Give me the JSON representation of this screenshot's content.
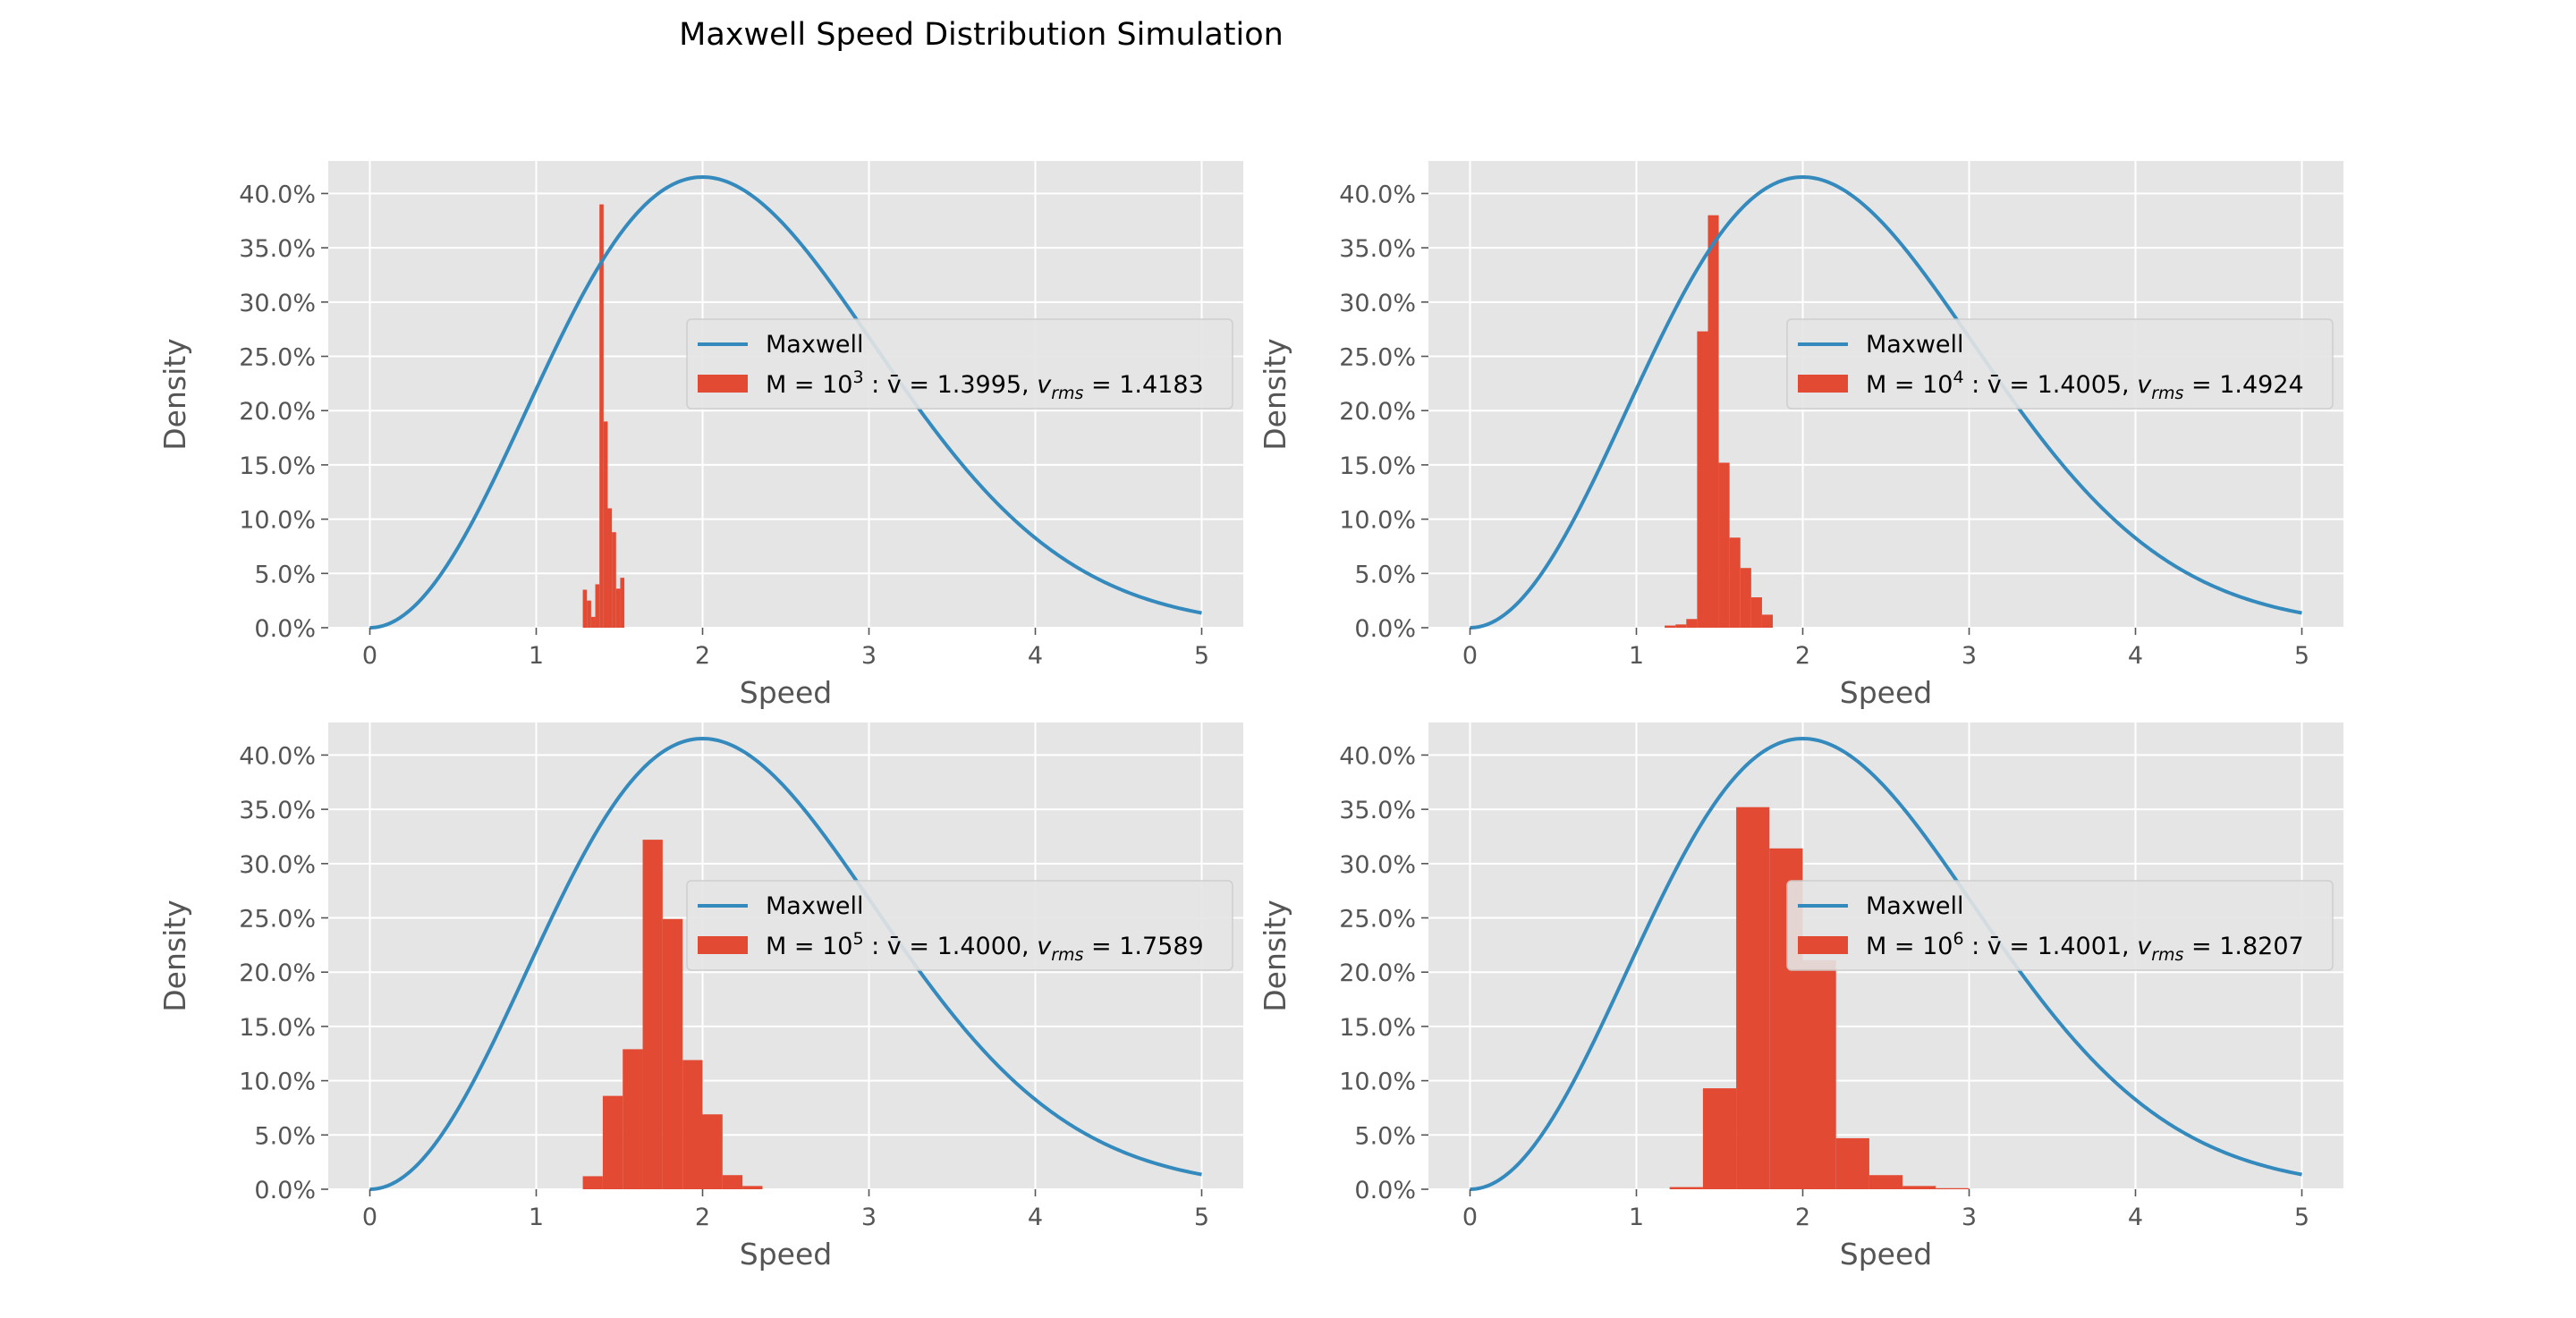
{
  "figure": {
    "title": "Maxwell Speed Distribution Simulation"
  },
  "colors": {
    "axes_background": "#e5e5e5",
    "grid": "#ffffff",
    "curve": "#348abd",
    "histogram": "#e24a33",
    "tick_text": "#555555",
    "title_text": "#000000",
    "legend_background": "#e5e5e5",
    "legend_border": "#cccccc"
  },
  "chart_data": [
    {
      "type": "bar",
      "panel": "top-left",
      "xlabel": "Speed",
      "ylabel": "Density",
      "xlim": [
        -0.25,
        5.25
      ],
      "ylim": [
        0,
        0.43
      ],
      "xticks": [
        0,
        1,
        2,
        3,
        4,
        5
      ],
      "xtick_labels": [
        "0",
        "1",
        "2",
        "3",
        "4",
        "5"
      ],
      "yticks": [
        0,
        0.05,
        0.1,
        0.15,
        0.2,
        0.25,
        0.3,
        0.35,
        0.4
      ],
      "ytick_labels": [
        "0.0%",
        "5.0%",
        "10.0%",
        "15.0%",
        "20.0%",
        "25.0%",
        "30.0%",
        "35.0%",
        "40.0%"
      ],
      "grid": true,
      "legend_position": "center-right",
      "maxwell_curve": {
        "name": "Maxwell",
        "formula": "sqrt(2/pi)*(v^2/a^3)*exp(-v^2/(2a^2))",
        "a": 1.414,
        "x_range": [
          0,
          5
        ]
      },
      "histogram": {
        "name_prefix": "M = 10",
        "name_exponent": "3",
        "name_vbar": " : v̄ = 1.3995, ",
        "name_vrms_label": "v",
        "name_vrms_sub": "rms",
        "name_vrms_value": " = 1.4183",
        "bin_edges": [
          1.28,
          1.305,
          1.33,
          1.355,
          1.38,
          1.405,
          1.43,
          1.455,
          1.48,
          1.505,
          1.53
        ],
        "values": [
          0.035,
          0.025,
          0.01,
          0.04,
          0.39,
          0.19,
          0.11,
          0.088,
          0.036,
          0.046
        ]
      }
    },
    {
      "type": "bar",
      "panel": "top-right",
      "xlabel": "Speed",
      "ylabel": "Density",
      "xlim": [
        -0.25,
        5.25
      ],
      "ylim": [
        0,
        0.43
      ],
      "xticks": [
        0,
        1,
        2,
        3,
        4,
        5
      ],
      "xtick_labels": [
        "0",
        "1",
        "2",
        "3",
        "4",
        "5"
      ],
      "yticks": [
        0,
        0.05,
        0.1,
        0.15,
        0.2,
        0.25,
        0.3,
        0.35,
        0.4
      ],
      "ytick_labels": [
        "0.0%",
        "5.0%",
        "10.0%",
        "15.0%",
        "20.0%",
        "25.0%",
        "30.0%",
        "35.0%",
        "40.0%"
      ],
      "grid": true,
      "legend_position": "center-right",
      "maxwell_curve": {
        "name": "Maxwell",
        "formula": "sqrt(2/pi)*(v^2/a^3)*exp(-v^2/(2a^2))",
        "a": 1.414,
        "x_range": [
          0,
          5
        ]
      },
      "histogram": {
        "name_prefix": "M = 10",
        "name_exponent": "4",
        "name_vbar": " : v̄ = 1.4005, ",
        "name_vrms_label": "v",
        "name_vrms_sub": "rms",
        "name_vrms_value": " = 1.4924",
        "bin_edges": [
          1.17,
          1.235,
          1.3,
          1.365,
          1.43,
          1.495,
          1.56,
          1.625,
          1.69,
          1.755,
          1.82
        ],
        "values": [
          0.002,
          0.003,
          0.008,
          0.273,
          0.38,
          0.152,
          0.083,
          0.055,
          0.028,
          0.012
        ]
      }
    },
    {
      "type": "bar",
      "panel": "bottom-left",
      "xlabel": "Speed",
      "ylabel": "Density",
      "xlim": [
        -0.25,
        5.25
      ],
      "ylim": [
        0,
        0.43
      ],
      "xticks": [
        0,
        1,
        2,
        3,
        4,
        5
      ],
      "xtick_labels": [
        "0",
        "1",
        "2",
        "3",
        "4",
        "5"
      ],
      "yticks": [
        0,
        0.05,
        0.1,
        0.15,
        0.2,
        0.25,
        0.3,
        0.35,
        0.4
      ],
      "ytick_labels": [
        "0.0%",
        "5.0%",
        "10.0%",
        "15.0%",
        "20.0%",
        "25.0%",
        "30.0%",
        "35.0%",
        "40.0%"
      ],
      "grid": true,
      "legend_position": "center-right",
      "maxwell_curve": {
        "name": "Maxwell",
        "formula": "sqrt(2/pi)*(v^2/a^3)*exp(-v^2/(2a^2))",
        "a": 1.414,
        "x_range": [
          0,
          5
        ]
      },
      "histogram": {
        "name_prefix": "M = 10",
        "name_exponent": "5",
        "name_vbar": " : v̄ = 1.4000, ",
        "name_vrms_label": "v",
        "name_vrms_sub": "rms",
        "name_vrms_value": " = 1.7589",
        "bin_edges": [
          1.28,
          1.4,
          1.52,
          1.64,
          1.76,
          1.88,
          2.0,
          2.12,
          2.24,
          2.36,
          2.48
        ],
        "values": [
          0.012,
          0.086,
          0.129,
          0.322,
          0.249,
          0.119,
          0.069,
          0.013,
          0.003,
          0.0
        ]
      }
    },
    {
      "type": "bar",
      "panel": "bottom-right",
      "xlabel": "Speed",
      "ylabel": "Density",
      "xlim": [
        -0.25,
        5.25
      ],
      "ylim": [
        0,
        0.43
      ],
      "xticks": [
        0,
        1,
        2,
        3,
        4,
        5
      ],
      "xtick_labels": [
        "0",
        "1",
        "2",
        "3",
        "4",
        "5"
      ],
      "yticks": [
        0,
        0.05,
        0.1,
        0.15,
        0.2,
        0.25,
        0.3,
        0.35,
        0.4
      ],
      "ytick_labels": [
        "0.0%",
        "5.0%",
        "10.0%",
        "15.0%",
        "20.0%",
        "25.0%",
        "30.0%",
        "35.0%",
        "40.0%"
      ],
      "grid": true,
      "legend_position": "center-right",
      "maxwell_curve": {
        "name": "Maxwell",
        "formula": "sqrt(2/pi)*(v^2/a^3)*exp(-v^2/(2a^2))",
        "a": 1.414,
        "x_range": [
          0,
          5
        ]
      },
      "histogram": {
        "name_prefix": "M = 10",
        "name_exponent": "6",
        "name_vbar": " : v̄ = 1.4001, ",
        "name_vrms_label": "v",
        "name_vrms_sub": "rms",
        "name_vrms_value": " = 1.8207",
        "bin_edges": [
          1.2,
          1.4,
          1.6,
          1.8,
          2.0,
          2.2,
          2.4,
          2.6,
          2.8,
          3.0
        ],
        "values": [
          0.002,
          0.093,
          0.352,
          0.314,
          0.211,
          0.047,
          0.013,
          0.003,
          0.001
        ]
      }
    }
  ]
}
